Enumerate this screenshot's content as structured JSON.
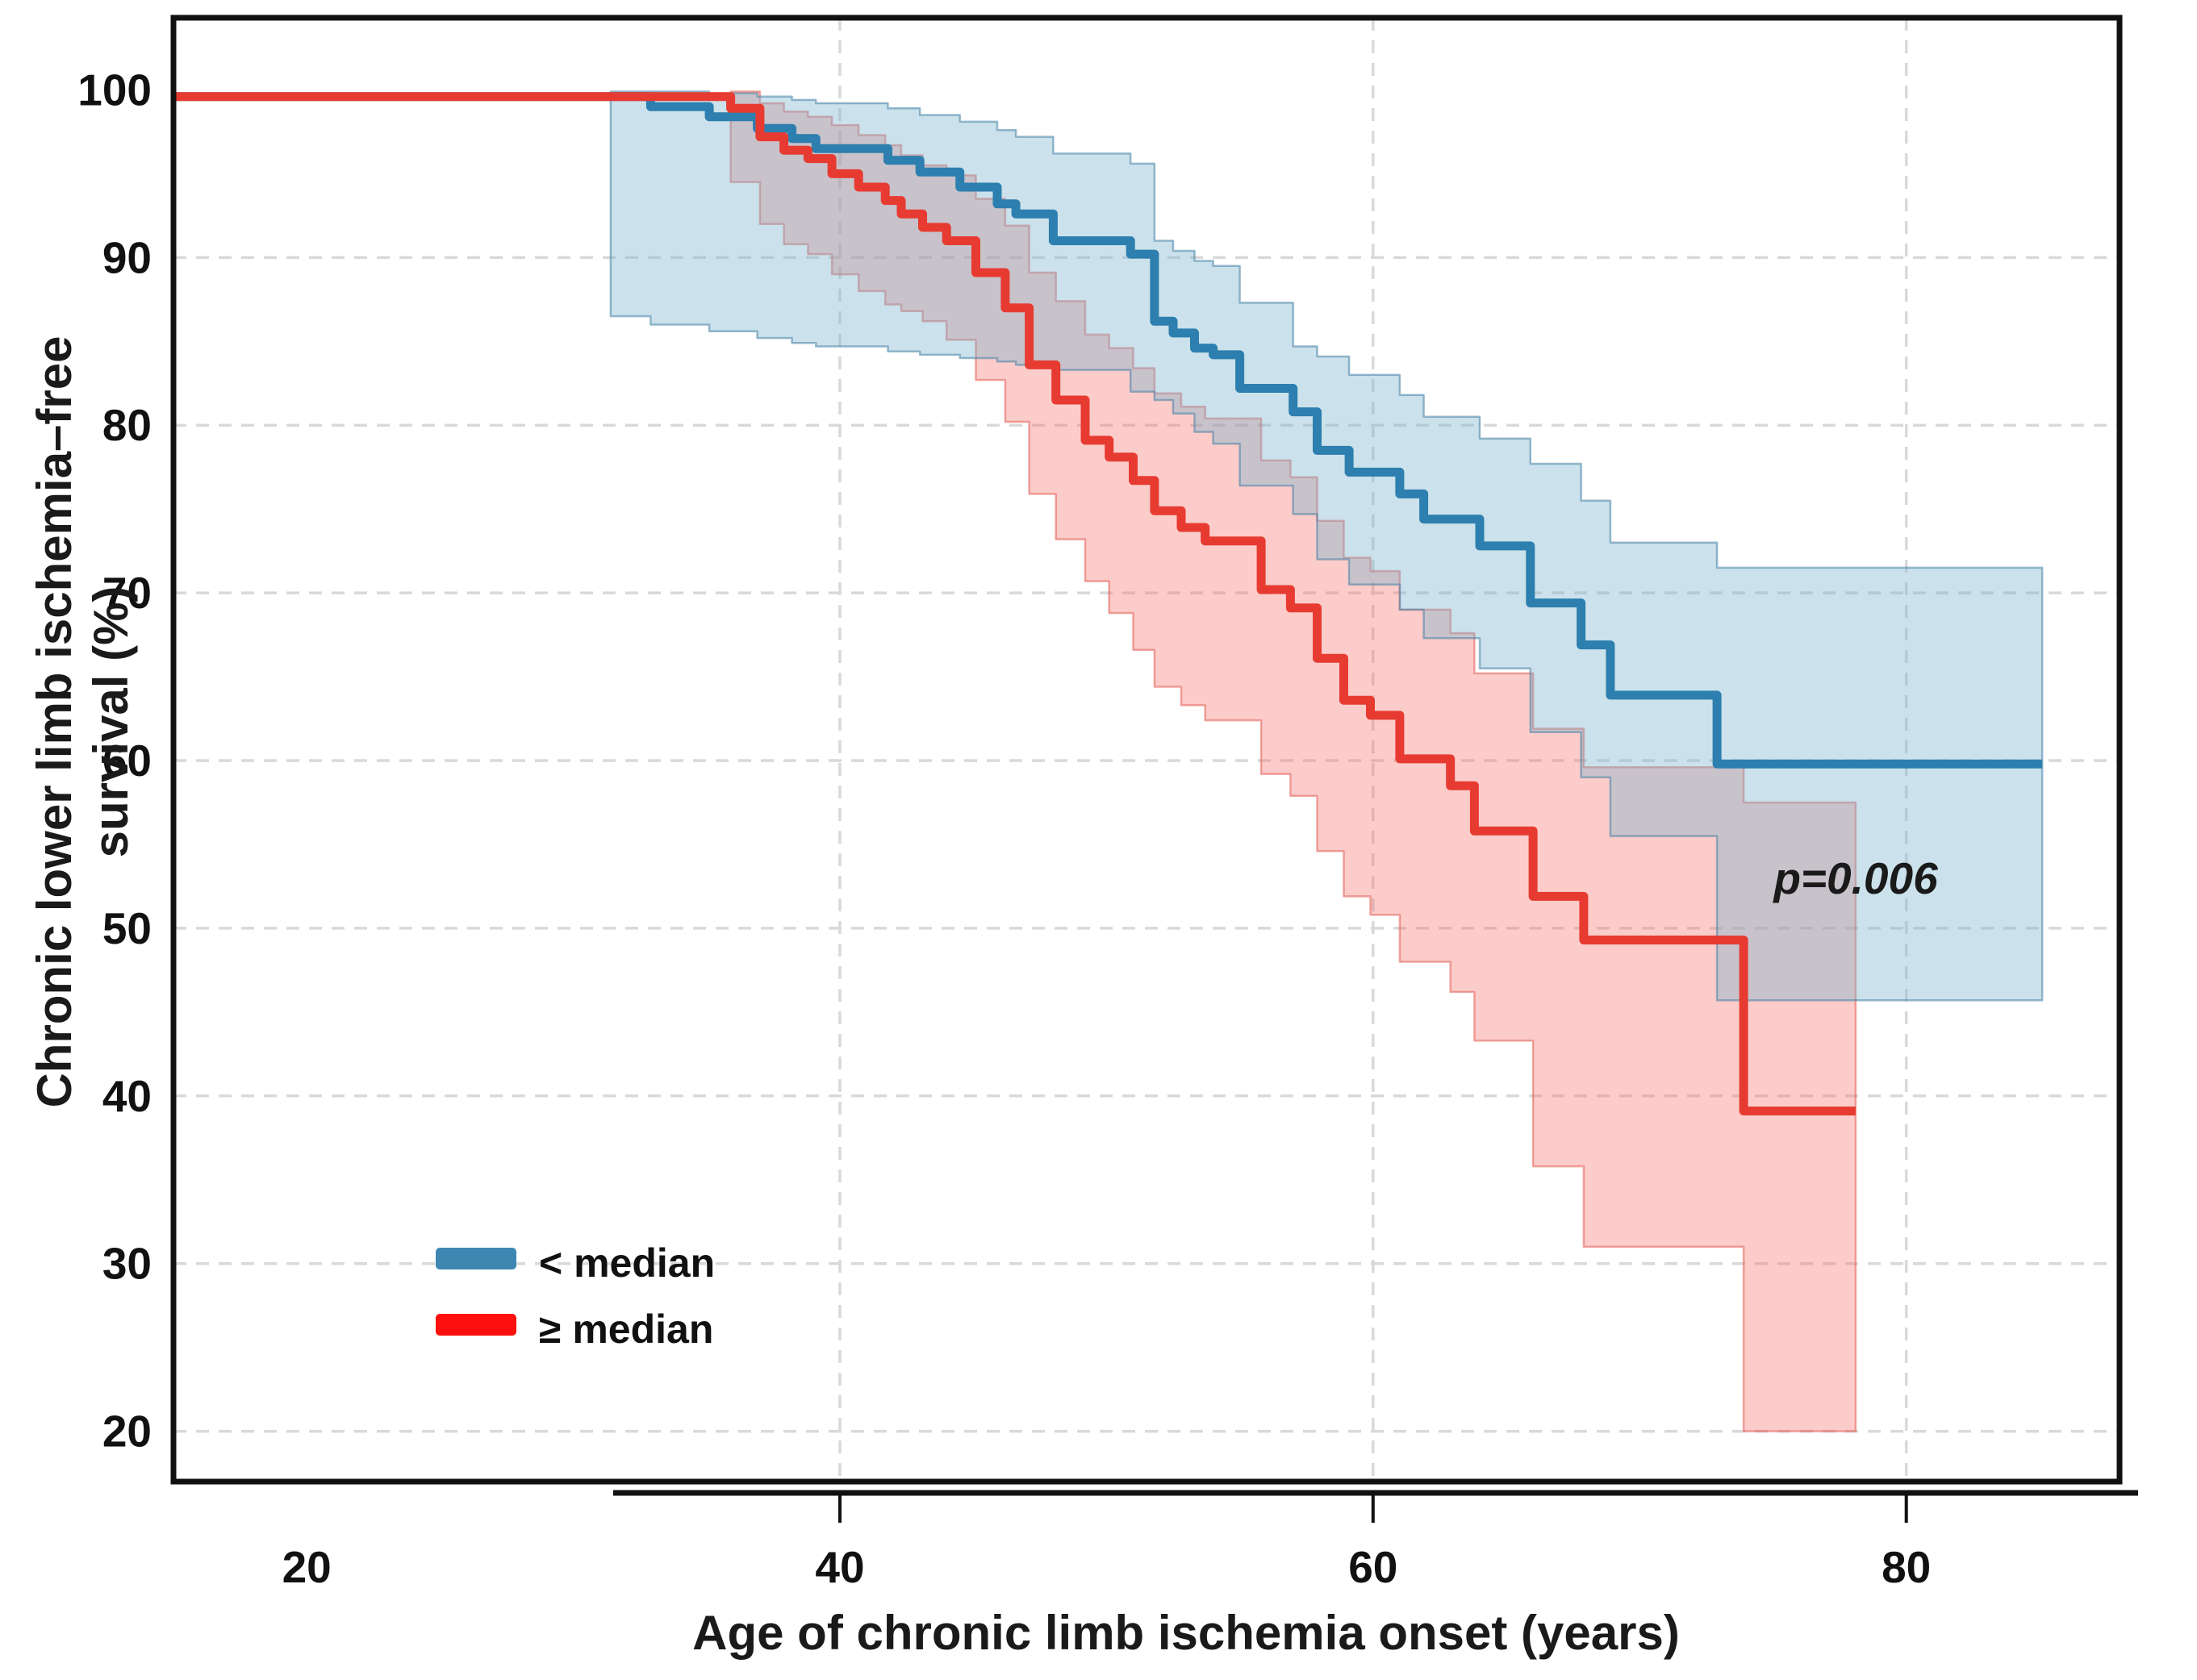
{
  "chart_data": {
    "type": "line",
    "subtype": "kaplan-meier-step-curves-with-confidence-bands",
    "title": "",
    "xlabel": "Age of chronic limb ischemia onset (years)",
    "ylabel": "Chronic lower limb ischemia–free survival (%)",
    "ylabel_line1": "Chronic lower limb ischemia–free",
    "ylabel_line2": "survival (%)",
    "xlim": [
      15,
      88
    ],
    "ylim": [
      17,
      104.3
    ],
    "xticks": [
      20,
      40,
      60,
      80
    ],
    "yticks": [
      100,
      90,
      80,
      70,
      60,
      50,
      40,
      30,
      20
    ],
    "grid": "dashed light gray, horizontal at 20-90, vertical at 40/60/80",
    "legend_position": "lower-left",
    "annotation": {
      "text": "p=0.006",
      "x": 78,
      "y": 53
    },
    "step_format": [
      "age_years",
      "survival_pct",
      "ci_lower_pct",
      "ci_upper_pct"
    ],
    "series": [
      {
        "name": "< median",
        "color": "#2c7fae",
        "legend_color": "#3d87b2",
        "band_fill": "rgba(125,180,205,0.40)",
        "band_edge": "rgba(70,130,165,0.55)",
        "end_age": 85.1,
        "steps": [
          [
            15.0,
            99.6,
            null,
            null
          ],
          [
            31.4,
            99.6,
            86.5,
            99.9
          ],
          [
            32.9,
            99.0,
            86.0,
            99.9
          ],
          [
            35.1,
            98.4,
            85.6,
            99.8
          ],
          [
            36.9,
            97.7,
            85.2,
            99.6
          ],
          [
            38.2,
            97.1,
            84.9,
            99.4
          ],
          [
            39.1,
            96.5,
            84.7,
            99.2
          ],
          [
            41.8,
            95.8,
            84.4,
            98.9
          ],
          [
            43.0,
            95.1,
            84.2,
            98.5
          ],
          [
            44.5,
            94.2,
            84.0,
            98.1
          ],
          [
            45.9,
            93.2,
            83.8,
            97.6
          ],
          [
            46.6,
            92.6,
            83.6,
            97.2
          ],
          [
            48.0,
            91.0,
            83.3,
            96.2
          ],
          [
            50.9,
            90.2,
            82.0,
            95.6
          ],
          [
            51.8,
            86.2,
            81.5,
            91.0
          ],
          [
            52.5,
            85.5,
            80.7,
            90.4
          ],
          [
            53.3,
            84.6,
            79.6,
            89.8
          ],
          [
            54.0,
            84.2,
            78.9,
            89.5
          ],
          [
            55.0,
            82.2,
            76.4,
            87.3
          ],
          [
            57.0,
            80.8,
            74.7,
            84.7
          ],
          [
            57.9,
            78.5,
            72.0,
            84.1
          ],
          [
            59.1,
            77.2,
            70.5,
            83.0
          ],
          [
            61.0,
            75.9,
            69.0,
            81.8
          ],
          [
            61.9,
            74.4,
            67.3,
            80.5
          ],
          [
            64.0,
            72.8,
            65.5,
            79.2
          ],
          [
            65.9,
            69.4,
            61.7,
            77.7
          ],
          [
            67.8,
            66.9,
            59.0,
            75.5
          ],
          [
            68.9,
            63.9,
            55.5,
            73.0
          ],
          [
            72.9,
            59.8,
            45.7,
            71.5
          ]
        ]
      },
      {
        "name": "≥ median",
        "color": "#e73b31",
        "legend_color": "#fb100d",
        "band_fill": "rgba(243,110,103,0.35)",
        "band_edge": "rgba(225,95,88,0.55)",
        "end_age": 78.1,
        "steps": [
          [
            15.0,
            99.6,
            null,
            null
          ],
          [
            35.9,
            98.9,
            94.5,
            99.9
          ],
          [
            37.0,
            97.2,
            92.0,
            99.2
          ],
          [
            37.9,
            96.4,
            90.8,
            98.7
          ],
          [
            38.8,
            95.9,
            90.2,
            98.4
          ],
          [
            39.7,
            95.0,
            89.0,
            97.9
          ],
          [
            40.7,
            94.2,
            88.0,
            97.3
          ],
          [
            41.7,
            93.4,
            87.2,
            96.7
          ],
          [
            42.3,
            92.6,
            86.8,
            96.1
          ],
          [
            43.1,
            91.8,
            86.2,
            95.5
          ],
          [
            44.0,
            91.0,
            85.1,
            94.9
          ],
          [
            45.1,
            89.1,
            82.7,
            93.5
          ],
          [
            46.2,
            87.0,
            80.2,
            91.9
          ],
          [
            47.1,
            83.6,
            75.9,
            89.1
          ],
          [
            48.1,
            81.5,
            73.2,
            87.4
          ],
          [
            49.2,
            79.1,
            70.7,
            85.4
          ],
          [
            50.1,
            78.1,
            68.8,
            84.6
          ],
          [
            51.0,
            76.7,
            66.6,
            83.4
          ],
          [
            51.8,
            74.9,
            64.4,
            81.9
          ],
          [
            52.8,
            73.9,
            63.3,
            81.1
          ],
          [
            53.7,
            73.1,
            62.4,
            80.4
          ],
          [
            55.8,
            70.2,
            59.2,
            77.9
          ],
          [
            56.9,
            69.1,
            57.9,
            76.9
          ],
          [
            57.9,
            66.1,
            54.6,
            74.3
          ],
          [
            58.9,
            63.6,
            51.9,
            72.1
          ],
          [
            59.9,
            62.7,
            50.8,
            71.3
          ],
          [
            61.0,
            60.1,
            48.0,
            69.0
          ],
          [
            62.9,
            58.5,
            46.2,
            67.6
          ],
          [
            63.8,
            55.8,
            43.3,
            65.2
          ],
          [
            66.0,
            51.9,
            35.8,
            61.9
          ],
          [
            67.9,
            49.3,
            31.0,
            59.6
          ],
          [
            73.9,
            39.1,
            20.0,
            57.5
          ]
        ]
      }
    ]
  }
}
